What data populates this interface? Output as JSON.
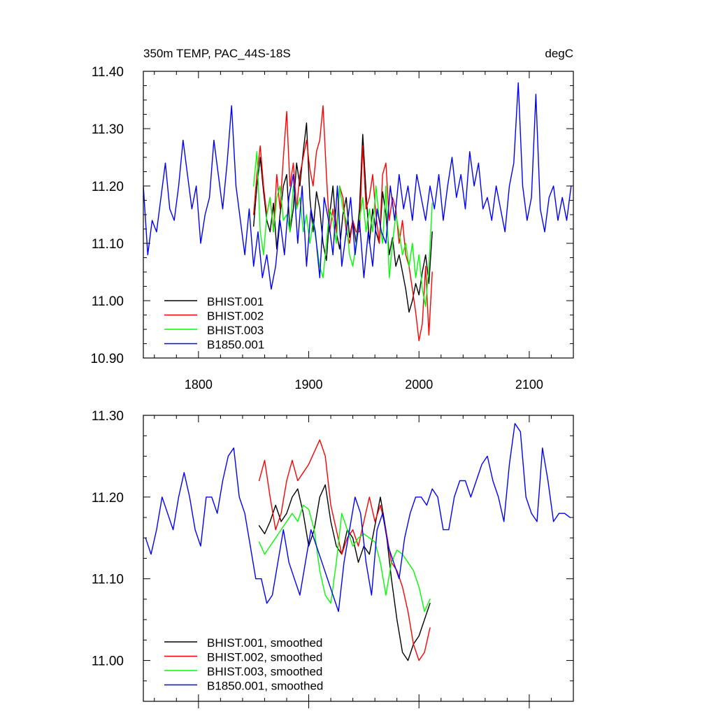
{
  "chart_data": [
    {
      "type": "line",
      "title": "350m TEMP, PAC_44S-18S",
      "units_label": "degC",
      "xlabel": "",
      "ylabel": "",
      "xlim": [
        1750,
        2140
      ],
      "ylim": [
        10.9,
        11.4
      ],
      "x_ticks": [
        1800,
        1900,
        2000,
        2100
      ],
      "x_tick_labels": [
        "1800",
        "1900",
        "2000",
        "2100"
      ],
      "y_ticks": [
        10.9,
        11.0,
        11.1,
        11.2,
        11.3,
        11.4
      ],
      "y_tick_labels": [
        "10.90",
        "11.00",
        "11.10",
        "11.20",
        "11.30",
        "11.40"
      ],
      "grid": false,
      "legend_position": "bottom-left",
      "series": [
        {
          "name": "BHIST.001",
          "color": "#000000",
          "x": [
            1850,
            1853,
            1856,
            1859,
            1862,
            1865,
            1868,
            1871,
            1874,
            1877,
            1880,
            1883,
            1886,
            1889,
            1892,
            1895,
            1898,
            1901,
            1904,
            1907,
            1910,
            1913,
            1916,
            1919,
            1922,
            1925,
            1928,
            1931,
            1934,
            1937,
            1940,
            1943,
            1946,
            1949,
            1952,
            1955,
            1958,
            1961,
            1964,
            1967,
            1970,
            1973,
            1976,
            1979,
            1982,
            1985,
            1988,
            1991,
            1994,
            1997,
            2000,
            2003,
            2006,
            2009,
            2012
          ],
          "y": [
            11.13,
            11.2,
            11.25,
            11.19,
            11.14,
            11.12,
            11.17,
            11.09,
            11.15,
            11.2,
            11.22,
            11.12,
            11.16,
            11.24,
            11.2,
            11.26,
            11.31,
            11.18,
            11.12,
            11.19,
            11.16,
            11.1,
            11.07,
            11.15,
            11.2,
            11.12,
            11.09,
            11.15,
            11.18,
            11.11,
            11.14,
            11.1,
            11.16,
            11.29,
            11.19,
            11.1,
            11.16,
            11.12,
            11.1,
            11.19,
            11.15,
            11.08,
            11.11,
            11.06,
            11.08,
            11.05,
            11.02,
            10.98,
            11.0,
            11.03,
            11.01,
            11.05,
            11.08,
            11.03,
            11.12
          ]
        },
        {
          "name": "BHIST.002",
          "color": "#ff0000",
          "x": [
            1850,
            1853,
            1856,
            1859,
            1862,
            1865,
            1868,
            1871,
            1874,
            1877,
            1880,
            1883,
            1886,
            1889,
            1892,
            1895,
            1898,
            1901,
            1904,
            1907,
            1910,
            1913,
            1916,
            1919,
            1922,
            1925,
            1928,
            1931,
            1934,
            1937,
            1940,
            1943,
            1946,
            1949,
            1952,
            1955,
            1958,
            1961,
            1964,
            1967,
            1970,
            1973,
            1976,
            1979,
            1982,
            1985,
            1988,
            1991,
            1994,
            1997,
            2000,
            2003,
            2006,
            2009,
            2012
          ],
          "y": [
            11.15,
            11.22,
            11.27,
            11.2,
            11.15,
            11.18,
            11.12,
            11.22,
            11.16,
            11.25,
            11.33,
            11.2,
            11.24,
            11.16,
            11.22,
            11.25,
            11.28,
            11.23,
            11.2,
            11.26,
            11.28,
            11.34,
            11.22,
            11.12,
            11.16,
            11.12,
            11.2,
            11.18,
            11.12,
            11.1,
            11.14,
            11.12,
            11.12,
            11.27,
            11.16,
            11.18,
            11.22,
            11.15,
            11.1,
            11.22,
            11.24,
            11.14,
            11.18,
            11.16,
            11.1,
            11.14,
            11.08,
            11.06,
            11.02,
            10.98,
            10.93,
            10.96,
            11.06,
            10.94,
            11.05
          ]
        },
        {
          "name": "BHIST.003",
          "color": "#00ff00",
          "x": [
            1850,
            1853,
            1856,
            1859,
            1862,
            1865,
            1868,
            1871,
            1874,
            1877,
            1880,
            1883,
            1886,
            1889,
            1892,
            1895,
            1898,
            1901,
            1904,
            1907,
            1910,
            1913,
            1916,
            1919,
            1922,
            1925,
            1928,
            1931,
            1934,
            1937,
            1940,
            1943,
            1946,
            1949,
            1952,
            1955,
            1958,
            1961,
            1964,
            1967,
            1970,
            1973,
            1976,
            1979,
            1982,
            1985,
            1988,
            1991,
            1994,
            1997,
            2000,
            2003,
            2006,
            2009,
            2012
          ],
          "y": [
            11.2,
            11.26,
            11.12,
            11.08,
            11.15,
            11.18,
            11.12,
            11.18,
            11.2,
            11.14,
            11.15,
            11.12,
            11.2,
            11.16,
            11.18,
            11.12,
            11.15,
            11.1,
            11.14,
            11.1,
            11.06,
            11.04,
            11.1,
            11.16,
            11.14,
            11.1,
            11.2,
            11.16,
            11.14,
            11.08,
            11.06,
            11.1,
            11.14,
            11.18,
            11.12,
            11.16,
            11.12,
            11.2,
            11.14,
            11.1,
            11.2,
            11.04,
            11.1,
            11.15,
            11.12,
            11.08,
            11.1,
            11.06,
            11.1,
            11.04,
            11.08,
            11.02,
            10.99,
            11.06,
            11.17
          ]
        },
        {
          "name": "B1850.001",
          "color": "#0000ff",
          "x": [
            1750,
            1754,
            1758,
            1762,
            1766,
            1770,
            1774,
            1778,
            1782,
            1786,
            1790,
            1794,
            1798,
            1802,
            1806,
            1810,
            1814,
            1818,
            1822,
            1826,
            1830,
            1834,
            1838,
            1842,
            1846,
            1850,
            1854,
            1858,
            1862,
            1866,
            1870,
            1874,
            1878,
            1882,
            1886,
            1890,
            1894,
            1898,
            1902,
            1906,
            1910,
            1914,
            1918,
            1922,
            1926,
            1930,
            1934,
            1938,
            1942,
            1946,
            1950,
            1954,
            1958,
            1962,
            1966,
            1970,
            1974,
            1978,
            1982,
            1986,
            1990,
            1994,
            1998,
            2002,
            2006,
            2010,
            2014,
            2018,
            2022,
            2026,
            2030,
            2034,
            2038,
            2042,
            2046,
            2050,
            2054,
            2058,
            2062,
            2066,
            2070,
            2074,
            2078,
            2082,
            2086,
            2090,
            2094,
            2098,
            2102,
            2106,
            2110,
            2114,
            2118,
            2122,
            2126,
            2130,
            2134,
            2138
          ],
          "y": [
            11.2,
            11.08,
            11.14,
            11.12,
            11.18,
            11.24,
            11.16,
            11.14,
            11.2,
            11.28,
            11.22,
            11.16,
            11.2,
            11.1,
            11.15,
            11.18,
            11.28,
            11.22,
            11.16,
            11.24,
            11.34,
            11.2,
            11.14,
            11.08,
            11.16,
            11.06,
            11.12,
            11.04,
            11.08,
            11.02,
            11.06,
            11.14,
            11.08,
            11.18,
            11.22,
            11.1,
            11.2,
            11.06,
            11.16,
            11.12,
            11.04,
            11.18,
            11.14,
            11.08,
            11.2,
            11.06,
            11.12,
            11.18,
            11.08,
            11.14,
            11.04,
            11.12,
            11.06,
            11.16,
            11.12,
            11.1,
            11.2,
            11.14,
            11.22,
            11.16,
            11.2,
            11.14,
            11.22,
            11.18,
            11.14,
            11.2,
            11.16,
            11.22,
            11.14,
            11.2,
            11.25,
            11.18,
            11.22,
            11.16,
            11.26,
            11.2,
            11.24,
            11.16,
            11.18,
            11.14,
            11.2,
            11.16,
            11.12,
            11.2,
            11.24,
            11.38,
            11.2,
            11.14,
            11.18,
            11.36,
            11.16,
            11.12,
            11.18,
            11.2,
            11.14,
            11.18,
            11.14,
            11.2
          ]
        }
      ]
    },
    {
      "type": "line",
      "title": "",
      "xlabel": "",
      "ylabel": "",
      "xlim": [
        1750,
        2140
      ],
      "ylim": [
        10.95,
        11.3
      ],
      "x_ticks": [
        1800,
        1900,
        2000,
        2100
      ],
      "y_ticks": [
        11.0,
        11.1,
        11.2,
        11.3
      ],
      "y_tick_labels": [
        "11.00",
        "11.10",
        "11.20",
        "11.30"
      ],
      "grid": false,
      "legend_position": "bottom-left",
      "series": [
        {
          "name": "BHIST.001, smoothed",
          "color": "#000000",
          "x": [
            1855,
            1860,
            1865,
            1870,
            1875,
            1880,
            1885,
            1890,
            1895,
            1900,
            1905,
            1910,
            1915,
            1920,
            1925,
            1930,
            1935,
            1940,
            1945,
            1950,
            1955,
            1960,
            1965,
            1970,
            1975,
            1980,
            1985,
            1990,
            1995,
            2000,
            2005,
            2010
          ],
          "y": [
            11.165,
            11.155,
            11.17,
            11.19,
            11.17,
            11.18,
            11.2,
            11.21,
            11.18,
            11.14,
            11.16,
            11.2,
            11.215,
            11.17,
            11.14,
            11.13,
            11.16,
            11.15,
            11.12,
            11.14,
            11.13,
            11.165,
            11.2,
            11.16,
            11.1,
            11.05,
            11.01,
            11.0,
            11.02,
            11.03,
            11.05,
            11.07
          ]
        },
        {
          "name": "BHIST.002, smoothed",
          "color": "#ff0000",
          "x": [
            1855,
            1860,
            1865,
            1870,
            1875,
            1880,
            1885,
            1890,
            1895,
            1900,
            1905,
            1910,
            1915,
            1920,
            1925,
            1930,
            1935,
            1940,
            1945,
            1950,
            1955,
            1960,
            1965,
            1970,
            1975,
            1980,
            1985,
            1990,
            1995,
            2000,
            2005,
            2010
          ],
          "y": [
            11.22,
            11.245,
            11.2,
            11.16,
            11.18,
            11.22,
            11.245,
            11.22,
            11.23,
            11.24,
            11.255,
            11.27,
            11.25,
            11.19,
            11.16,
            11.13,
            11.15,
            11.16,
            11.14,
            11.17,
            11.2,
            11.17,
            11.19,
            11.16,
            11.12,
            11.11,
            11.09,
            11.06,
            11.02,
            11.0,
            11.01,
            11.04
          ]
        },
        {
          "name": "BHIST.003, smoothed",
          "color": "#00ff00",
          "x": [
            1855,
            1860,
            1865,
            1870,
            1875,
            1880,
            1885,
            1890,
            1895,
            1900,
            1905,
            1910,
            1915,
            1920,
            1925,
            1930,
            1935,
            1940,
            1945,
            1950,
            1955,
            1960,
            1965,
            1970,
            1975,
            1980,
            1985,
            1990,
            1995,
            2000,
            2005,
            2010
          ],
          "y": [
            11.145,
            11.13,
            11.14,
            11.15,
            11.16,
            11.17,
            11.18,
            11.17,
            11.19,
            11.185,
            11.16,
            11.11,
            11.08,
            11.07,
            11.12,
            11.18,
            11.16,
            11.14,
            11.15,
            11.155,
            11.15,
            11.145,
            11.12,
            11.08,
            11.12,
            11.135,
            11.13,
            11.12,
            11.11,
            11.09,
            11.06,
            11.075
          ]
        },
        {
          "name": "B1850.001, smoothed",
          "color": "#0000ff",
          "x": [
            1752,
            1757,
            1762,
            1767,
            1772,
            1777,
            1782,
            1787,
            1792,
            1797,
            1802,
            1807,
            1812,
            1817,
            1822,
            1827,
            1832,
            1837,
            1842,
            1847,
            1852,
            1857,
            1862,
            1867,
            1872,
            1877,
            1882,
            1887,
            1892,
            1897,
            1902,
            1907,
            1912,
            1917,
            1922,
            1927,
            1932,
            1937,
            1942,
            1947,
            1952,
            1957,
            1962,
            1967,
            1972,
            1977,
            1982,
            1987,
            1992,
            1997,
            2002,
            2007,
            2012,
            2017,
            2022,
            2027,
            2032,
            2037,
            2042,
            2047,
            2052,
            2057,
            2062,
            2067,
            2072,
            2077,
            2082,
            2087,
            2092,
            2097,
            2102,
            2107,
            2112,
            2117,
            2122,
            2127,
            2132,
            2137
          ],
          "y": [
            11.15,
            11.13,
            11.16,
            11.2,
            11.18,
            11.16,
            11.2,
            11.23,
            11.2,
            11.16,
            11.14,
            11.2,
            11.2,
            11.18,
            11.22,
            11.25,
            11.26,
            11.2,
            11.18,
            11.14,
            11.1,
            11.1,
            11.07,
            11.08,
            11.12,
            11.16,
            11.12,
            11.1,
            11.08,
            11.12,
            11.16,
            11.14,
            11.12,
            11.1,
            11.08,
            11.06,
            11.12,
            11.16,
            11.2,
            11.18,
            11.12,
            11.08,
            11.16,
            11.18,
            11.14,
            11.12,
            11.1,
            11.15,
            11.18,
            11.2,
            11.2,
            11.19,
            11.21,
            11.2,
            11.16,
            11.16,
            11.2,
            11.22,
            11.22,
            11.2,
            11.22,
            11.24,
            11.25,
            11.22,
            11.2,
            11.17,
            11.24,
            11.29,
            11.28,
            11.2,
            11.18,
            11.17,
            11.26,
            11.22,
            11.17,
            11.18,
            11.18,
            11.175
          ]
        }
      ]
    }
  ]
}
